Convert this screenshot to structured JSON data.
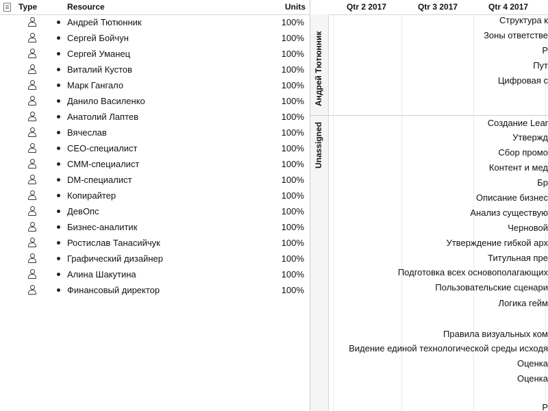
{
  "table": {
    "headers": {
      "type": "Type",
      "resource": "Resource",
      "units": "Units"
    },
    "rows": [
      {
        "name": "Андрей Тютюнник",
        "units": "100%"
      },
      {
        "name": "Сергей Бойчун",
        "units": "100%"
      },
      {
        "name": "Сергей Уманец",
        "units": "100%"
      },
      {
        "name": "Виталий Кустов",
        "units": "100%"
      },
      {
        "name": "Марк Гангало",
        "units": "100%"
      },
      {
        "name": "Данило Василенко",
        "units": "100%"
      },
      {
        "name": "Анатолий Лаптев",
        "units": "100%"
      },
      {
        "name": "Вячеслав",
        "units": "100%"
      },
      {
        "name": "CEO-специалист",
        "units": "100%"
      },
      {
        "name": "CMM-специалист",
        "units": "100%"
      },
      {
        "name": "DM-специалист",
        "units": "100%"
      },
      {
        "name": "Копирайтер",
        "units": "100%"
      },
      {
        "name": "ДевОпс",
        "units": "100%"
      },
      {
        "name": "Бизнес-аналитик",
        "units": "100%"
      },
      {
        "name": "Ростислав Танасийчук",
        "units": "100%"
      },
      {
        "name": "Графический дизайнер",
        "units": "100%"
      },
      {
        "name": "Алина Шакутина",
        "units": "100%"
      },
      {
        "name": "Финансовый директор",
        "units": "100%"
      }
    ]
  },
  "gantt": {
    "quarters": [
      "Qtr 2 2017",
      "Qtr 3 2017",
      "Qtr 4 2017"
    ],
    "groups": [
      "Андрей Тютюнник",
      "Unassigned"
    ],
    "tasks": [
      "Структура к",
      "Зоны ответстве",
      "Р",
      "Пут",
      "Цифровая с",
      "Создание Lear",
      "Утвержд",
      "Сбор промо",
      "Контент и мед",
      "Бр",
      "Описание бизнес",
      "Анализ существую",
      "Черновой",
      "Утверждение гибкой арх",
      "Титульная пре",
      "Подготовка всех основополагающих",
      "Пользовательские сценари",
      "Логика гейм",
      "Правила визуальных ком",
      "Видение единой технологической среды исходя",
      "Оценка",
      "Оценка",
      "Р"
    ]
  }
}
